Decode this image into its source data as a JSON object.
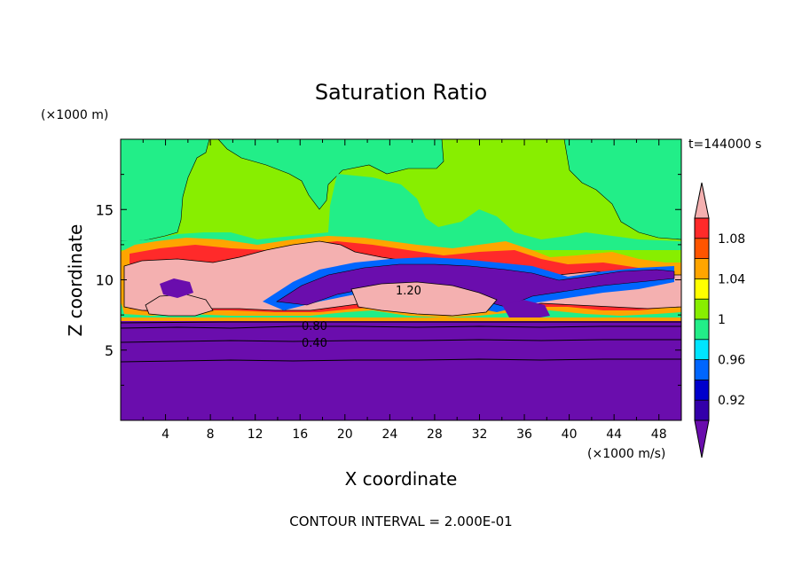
{
  "chart_data": {
    "type": "heatmap",
    "title": "Saturation Ratio",
    "xlabel": "X coordinate",
    "ylabel": "Z coordinate",
    "x_unit": "(×1000 m/s)",
    "y_unit": "(×1000 m)",
    "time_label": "t=144000 s",
    "footer": "CONTOUR INTERVAL = 2.000E-01",
    "xlim": [
      0,
      50
    ],
    "ylim": [
      0,
      20
    ],
    "x_ticks": [
      "4",
      "8",
      "12",
      "16",
      "20",
      "24",
      "28",
      "32",
      "36",
      "40",
      "44",
      "48"
    ],
    "y_ticks": [
      "5",
      "10",
      "15"
    ],
    "contour_labels": [
      "1.20",
      "0.80",
      "0.40"
    ],
    "colorbar": {
      "levels": [
        0.9,
        0.92,
        0.94,
        0.96,
        0.98,
        1.0,
        1.02,
        1.04,
        1.06,
        1.08,
        1.1
      ],
      "tick_labels": [
        "0.92",
        "0.96",
        "1",
        "1.04",
        "1.08"
      ],
      "colors": [
        "#6a0dad",
        "#3300aa",
        "#0000cc",
        "#0066ff",
        "#00e5ff",
        "#22ee88",
        "#88ee00",
        "#ffff00",
        "#ffa500",
        "#ff5500",
        "#ff2a2a",
        "#f4b0b0"
      ]
    }
  }
}
